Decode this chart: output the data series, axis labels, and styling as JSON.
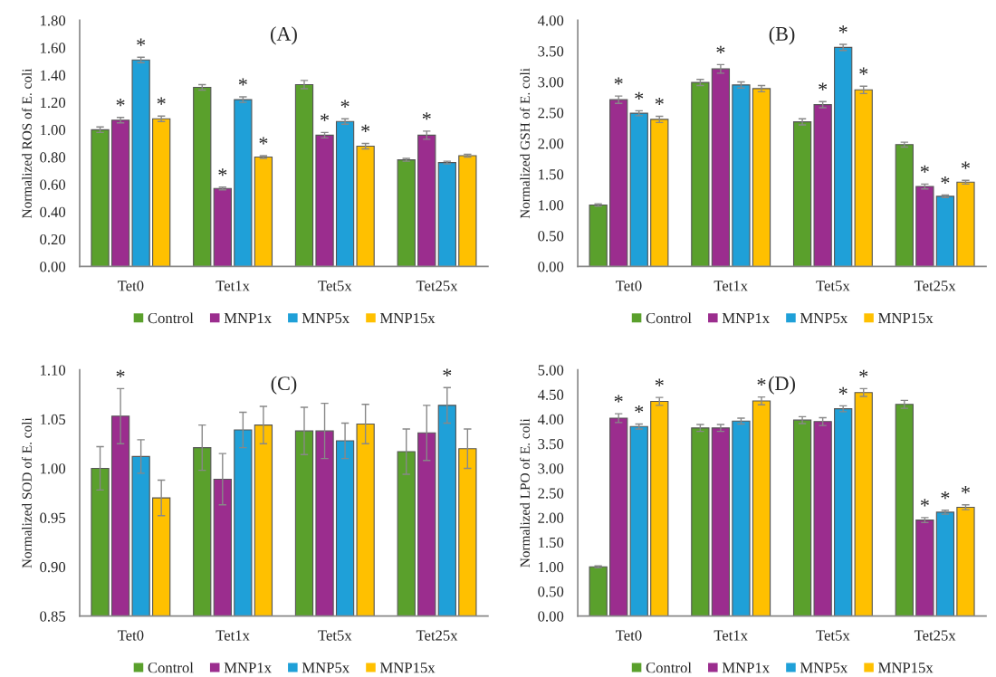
{
  "chart_data": [
    {
      "type": "bar",
      "title": "(A)",
      "ylabel": "Normalized ROS of E. coli",
      "categories": [
        "Tet0",
        "Tet1x",
        "Tet5x",
        "Tet25x"
      ],
      "legend": "bottom",
      "grid": false,
      "ylim": [
        0,
        1.8
      ],
      "yticks": [
        {
          "value": 0,
          "label": "0.00"
        },
        {
          "value": 0.2,
          "label": "0.20"
        },
        {
          "value": 0.4,
          "label": "0.40"
        },
        {
          "value": 0.6,
          "label": "0.60"
        },
        {
          "value": 0.8,
          "label": "0.80"
        },
        {
          "value": 1.0,
          "label": "1.00"
        },
        {
          "value": 1.2,
          "label": "1.20"
        },
        {
          "value": 1.4,
          "label": "1.40"
        },
        {
          "value": 1.6,
          "label": "1.60"
        },
        {
          "value": 1.8,
          "label": "1.80"
        }
      ],
      "series": [
        {
          "name": "Control",
          "color": "#5aa02c",
          "values": [
            1.0,
            1.31,
            1.33,
            0.78
          ],
          "errors": [
            0.02,
            0.02,
            0.03,
            0.01
          ],
          "value_labels": [
            null,
            null,
            null,
            null
          ]
        },
        {
          "name": "MNP1x",
          "color": "#9b2d8e",
          "values": [
            1.07,
            0.57,
            0.96,
            0.96
          ],
          "errors": [
            0.02,
            0.01,
            0.02,
            0.03
          ],
          "value_labels": [
            "*",
            "*",
            "*",
            "*"
          ]
        },
        {
          "name": "MNP5x",
          "color": "#1fa0d8",
          "values": [
            1.51,
            1.22,
            1.06,
            0.76
          ],
          "errors": [
            0.02,
            0.02,
            0.02,
            0.01
          ],
          "value_labels": [
            "*",
            "*",
            "*",
            null
          ]
        },
        {
          "name": "MNP15x",
          "color": "#ffc000",
          "values": [
            1.08,
            0.8,
            0.88,
            0.81
          ],
          "errors": [
            0.02,
            0.01,
            0.02,
            0.01
          ],
          "value_labels": [
            "*",
            "*",
            "*",
            null
          ]
        }
      ]
    },
    {
      "type": "bar",
      "title": "(B)",
      "ylabel": "Normalized GSH of E. coli",
      "categories": [
        "Tet0",
        "Tet1x",
        "Tet5x",
        "Tet25x"
      ],
      "legend": "bottom",
      "grid": false,
      "ylim": [
        0,
        4.0
      ],
      "yticks": [
        {
          "value": 0,
          "label": "0.00"
        },
        {
          "value": 0.5,
          "label": "0.50"
        },
        {
          "value": 1.0,
          "label": "1.00"
        },
        {
          "value": 1.5,
          "label": "1.50"
        },
        {
          "value": 2.0,
          "label": "2.00"
        },
        {
          "value": 2.5,
          "label": "2.50"
        },
        {
          "value": 3.0,
          "label": "3.00"
        },
        {
          "value": 3.5,
          "label": "3.50"
        },
        {
          "value": 4.0,
          "label": "4.00"
        }
      ],
      "series": [
        {
          "name": "Control",
          "color": "#5aa02c",
          "values": [
            1.0,
            2.99,
            2.35,
            1.98
          ],
          "errors": [
            0.02,
            0.05,
            0.05,
            0.04
          ],
          "value_labels": [
            null,
            null,
            null,
            null
          ]
        },
        {
          "name": "MNP1x",
          "color": "#9b2d8e",
          "values": [
            2.71,
            3.21,
            2.63,
            1.3
          ],
          "errors": [
            0.06,
            0.07,
            0.05,
            0.04
          ],
          "value_labels": [
            "*",
            "*",
            "*",
            "*"
          ]
        },
        {
          "name": "MNP5x",
          "color": "#1fa0d8",
          "values": [
            2.49,
            2.95,
            3.56,
            1.14
          ],
          "errors": [
            0.04,
            0.05,
            0.05,
            0.02
          ],
          "value_labels": [
            "*",
            null,
            "*",
            "*"
          ]
        },
        {
          "name": "MNP15x",
          "color": "#ffc000",
          "values": [
            2.39,
            2.89,
            2.87,
            1.37
          ],
          "errors": [
            0.05,
            0.05,
            0.06,
            0.03
          ],
          "value_labels": [
            "*",
            null,
            "*",
            "*"
          ]
        }
      ]
    },
    {
      "type": "bar",
      "title": "(C)",
      "ylabel": "Normalized SOD of E. coli",
      "categories": [
        "Tet0",
        "Tet1x",
        "Tet5x",
        "Tet25x"
      ],
      "legend": "bottom",
      "grid": false,
      "ylim": [
        0.85,
        1.1
      ],
      "yticks": [
        {
          "value": 0.85,
          "label": "0.85"
        },
        {
          "value": 0.9,
          "label": "0.90"
        },
        {
          "value": 0.95,
          "label": "0.95"
        },
        {
          "value": 1.0,
          "label": "1.00"
        },
        {
          "value": 1.05,
          "label": "1.05"
        },
        {
          "value": 1.1,
          "label": "1.10"
        }
      ],
      "series": [
        {
          "name": "Control",
          "color": "#5aa02c",
          "values": [
            1.0,
            1.021,
            1.038,
            1.017
          ],
          "errors": [
            0.022,
            0.023,
            0.024,
            0.023
          ],
          "value_labels": [
            null,
            null,
            null,
            null
          ]
        },
        {
          "name": "MNP1x",
          "color": "#9b2d8e",
          "values": [
            1.053,
            0.989,
            1.038,
            1.036
          ],
          "errors": [
            0.028,
            0.026,
            0.028,
            0.028
          ],
          "value_labels": [
            "*",
            null,
            null,
            null
          ]
        },
        {
          "name": "MNP5x",
          "color": "#1fa0d8",
          "values": [
            1.012,
            1.039,
            1.028,
            1.064
          ],
          "errors": [
            0.017,
            0.018,
            0.018,
            0.018
          ],
          "value_labels": [
            null,
            null,
            null,
            "*"
          ]
        },
        {
          "name": "MNP15x",
          "color": "#ffc000",
          "values": [
            0.97,
            1.044,
            1.045,
            1.02
          ],
          "errors": [
            0.018,
            0.019,
            0.02,
            0.02
          ],
          "value_labels": [
            null,
            null,
            null,
            null
          ]
        }
      ]
    },
    {
      "type": "bar",
      "title": "(D)",
      "ylabel": "Normalized LPO of E. coli",
      "categories": [
        "Tet0",
        "Tet1x",
        "Tet5x",
        "Tet25x"
      ],
      "legend": "bottom",
      "grid": false,
      "ylim": [
        0,
        5.0
      ],
      "yticks": [
        {
          "value": 0,
          "label": "0.00"
        },
        {
          "value": 0.5,
          "label": "0.50"
        },
        {
          "value": 1.0,
          "label": "1.00"
        },
        {
          "value": 1.5,
          "label": "1.50"
        },
        {
          "value": 2.0,
          "label": "2.00"
        },
        {
          "value": 2.5,
          "label": "2.50"
        },
        {
          "value": 3.0,
          "label": "3.00"
        },
        {
          "value": 3.5,
          "label": "3.50"
        },
        {
          "value": 4.0,
          "label": "4.00"
        },
        {
          "value": 4.5,
          "label": "4.50"
        },
        {
          "value": 5.0,
          "label": "5.00"
        }
      ],
      "series": [
        {
          "name": "Control",
          "color": "#5aa02c",
          "values": [
            1.0,
            3.82,
            3.98,
            4.3
          ],
          "errors": [
            0.02,
            0.07,
            0.07,
            0.08
          ],
          "value_labels": [
            null,
            null,
            null,
            null
          ]
        },
        {
          "name": "MNP1x",
          "color": "#9b2d8e",
          "values": [
            4.02,
            3.82,
            3.95,
            1.95
          ],
          "errors": [
            0.09,
            0.07,
            0.08,
            0.05
          ],
          "value_labels": [
            "*",
            null,
            null,
            "*"
          ]
        },
        {
          "name": "MNP5x",
          "color": "#1fa0d8",
          "values": [
            3.85,
            3.96,
            4.21,
            2.11
          ],
          "errors": [
            0.05,
            0.06,
            0.06,
            0.04
          ],
          "value_labels": [
            "*",
            null,
            "*",
            "*"
          ]
        },
        {
          "name": "MNP15x",
          "color": "#ffc000",
          "values": [
            4.36,
            4.37,
            4.54,
            2.21
          ],
          "errors": [
            0.08,
            0.08,
            0.08,
            0.05
          ],
          "value_labels": [
            "*",
            "*",
            "*",
            "*"
          ]
        }
      ]
    }
  ]
}
